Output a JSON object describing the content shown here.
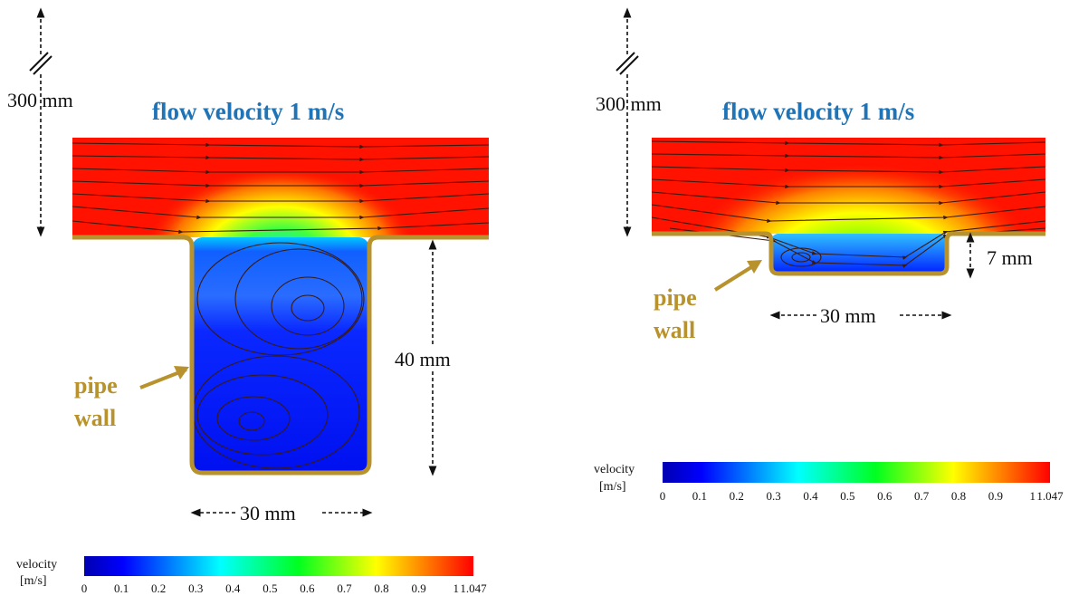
{
  "panels": [
    {
      "height_label": "300 mm",
      "title": "flow velocity 1 m/s",
      "wall_label": [
        "pipe",
        "wall"
      ],
      "depth_label": "40 mm",
      "width_label": "30 mm",
      "colorbar": {
        "label": [
          "velocity",
          "[m/s]"
        ],
        "ticks": [
          0,
          0.1,
          0.2,
          0.3,
          0.4,
          0.5,
          0.6,
          0.7,
          0.8,
          0.9,
          1,
          1.047
        ]
      }
    },
    {
      "height_label": "300 mm",
      "title": "flow velocity 1 m/s",
      "wall_label": [
        "pipe",
        "wall"
      ],
      "depth_label": "7 mm",
      "width_label": "30 mm",
      "colorbar": {
        "label": [
          "velocity",
          "[m/s]"
        ],
        "ticks": [
          0,
          0.1,
          0.2,
          0.3,
          0.4,
          0.5,
          0.6,
          0.7,
          0.8,
          0.9,
          1,
          1.047
        ]
      }
    }
  ]
}
